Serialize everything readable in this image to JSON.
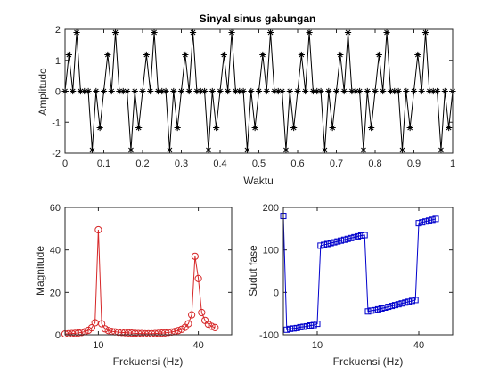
{
  "chart_data": [
    {
      "type": "line",
      "title": "Sinyal sinus gabungan",
      "xlabel": "Waktu",
      "ylabel": "Amplitudo",
      "xlim": [
        0,
        1
      ],
      "ylim": [
        -2,
        2
      ],
      "xticks": [
        "0",
        "0.1",
        "0.2",
        "0.3",
        "0.4",
        "0.5",
        "0.6",
        "0.7",
        "0.8",
        "0.9",
        "1"
      ],
      "yticks": [
        "-2",
        "-1",
        "0",
        "1",
        "2"
      ],
      "marker": "asterisk",
      "color": "#000000",
      "series": [
        {
          "x": [
            0,
            0.01,
            0.02,
            0.03,
            0.04,
            0.05,
            0.06,
            0.07,
            0.08,
            0.09,
            0.1,
            0.11,
            0.12,
            0.13,
            0.14,
            0.15,
            0.16,
            0.17,
            0.18,
            0.19,
            0.2,
            0.21,
            0.22,
            0.23,
            0.24,
            0.25,
            0.26,
            0.27,
            0.28,
            0.29,
            0.3,
            0.31,
            0.32,
            0.33,
            0.34,
            0.35,
            0.36,
            0.37,
            0.38,
            0.39,
            0.4,
            0.41,
            0.42,
            0.43,
            0.44,
            0.45,
            0.46,
            0.47,
            0.48,
            0.49,
            0.5,
            0.51,
            0.52,
            0.53,
            0.54,
            0.55,
            0.56,
            0.57,
            0.58,
            0.59,
            0.6,
            0.61,
            0.62,
            0.63,
            0.64,
            0.65,
            0.66,
            0.67,
            0.68,
            0.69,
            0.7,
            0.71,
            0.72,
            0.73,
            0.74,
            0.75,
            0.76,
            0.77,
            0.78,
            0.79,
            0.8,
            0.81,
            0.82,
            0.83,
            0.84,
            0.85,
            0.86,
            0.87,
            0.88,
            0.89,
            0.9,
            0.91,
            0.92,
            0.93,
            0.94,
            0.95,
            0.96,
            0.97,
            0.98,
            0.99,
            1.0
          ],
          "y": [
            0,
            1.18,
            0,
            1.9,
            0,
            0,
            0,
            -1.9,
            0,
            -1.18,
            0,
            1.18,
            0,
            1.9,
            0,
            0,
            0,
            -1.9,
            0,
            -1.18,
            0,
            1.18,
            0,
            1.9,
            0,
            0,
            0,
            -1.9,
            0,
            -1.18,
            0,
            1.18,
            0,
            1.9,
            0,
            0,
            0,
            -1.9,
            0,
            -1.18,
            0,
            1.18,
            0,
            1.9,
            0,
            0,
            0,
            -1.9,
            0,
            -1.18,
            0,
            1.18,
            0,
            1.9,
            0,
            0,
            0,
            -1.9,
            0,
            -1.18,
            0,
            1.18,
            0,
            1.9,
            0,
            0,
            0,
            -1.9,
            0,
            -1.18,
            0,
            1.18,
            0,
            1.9,
            0,
            0,
            0,
            -1.9,
            0,
            -1.18,
            0,
            1.18,
            0,
            1.9,
            0,
            0,
            0,
            -1.9,
            0,
            -1.18,
            0,
            1.18,
            0,
            1.9,
            0,
            0,
            0,
            -1.9,
            0,
            -1.18,
            0
          ]
        }
      ]
    },
    {
      "type": "line",
      "title": "",
      "xlabel": "Frekuensi (Hz)",
      "ylabel": "Magnitude",
      "xlim": [
        0,
        50
      ],
      "ylim": [
        0,
        60
      ],
      "xticks": [
        "10",
        "40"
      ],
      "xtick_values": [
        10,
        40
      ],
      "yticks": [
        "0",
        "20",
        "40",
        "60"
      ],
      "marker": "circle",
      "color": "#d62728",
      "series": [
        {
          "x": [
            0,
            1,
            2,
            3,
            4,
            5,
            6,
            7,
            8,
            9,
            10,
            11,
            12,
            13,
            14,
            15,
            16,
            17,
            18,
            19,
            20,
            21,
            22,
            23,
            24,
            25,
            26,
            27,
            28,
            29,
            30,
            31,
            32,
            33,
            34,
            35,
            36,
            37,
            38,
            39,
            40,
            41,
            42,
            43,
            44,
            45
          ],
          "y": [
            0.4,
            0.5,
            0.6,
            0.7,
            0.9,
            1.1,
            1.5,
            2.1,
            3.3,
            5.7,
            49.5,
            5.2,
            2.8,
            2.0,
            1.6,
            1.4,
            1.2,
            1.1,
            1.0,
            0.9,
            0.8,
            0.7,
            0.6,
            0.6,
            0.5,
            0.5,
            0.5,
            0.6,
            0.7,
            0.8,
            0.9,
            1.1,
            1.3,
            1.6,
            2.0,
            2.6,
            3.5,
            5.2,
            9.4,
            37.0,
            26.5,
            10.5,
            6.8,
            5.0,
            4.0,
            3.4
          ]
        }
      ]
    },
    {
      "type": "line",
      "title": "",
      "xlabel": "Frekuensi (Hz)",
      "ylabel": "Sudut fase",
      "xlim": [
        0,
        50
      ],
      "ylim": [
        -100,
        200
      ],
      "xticks": [
        "10",
        "40"
      ],
      "xtick_values": [
        10,
        40
      ],
      "yticks": [
        "-100",
        "0",
        "100",
        "200"
      ],
      "marker": "square",
      "color": "#0000cc",
      "series": [
        {
          "x": [
            0,
            1,
            2,
            3,
            4,
            5,
            6,
            7,
            8,
            9,
            10,
            11,
            12,
            13,
            14,
            15,
            16,
            17,
            18,
            19,
            20,
            21,
            22,
            23,
            24,
            25,
            26,
            27,
            28,
            29,
            30,
            31,
            32,
            33,
            34,
            35,
            36,
            37,
            38,
            39,
            40,
            41,
            42,
            43,
            44,
            45
          ],
          "y": [
            180,
            -88,
            -86,
            -85,
            -84,
            -82,
            -81,
            -80,
            -78,
            -77,
            -74,
            110,
            112,
            114,
            116,
            118,
            120,
            122,
            124,
            126,
            128,
            130,
            132,
            134,
            135,
            -45,
            -43,
            -42,
            -40,
            -38,
            -36,
            -34,
            -32,
            -30,
            -28,
            -26,
            -24,
            -22,
            -20,
            -18,
            163,
            165,
            167,
            169,
            171,
            173
          ]
        }
      ]
    }
  ]
}
